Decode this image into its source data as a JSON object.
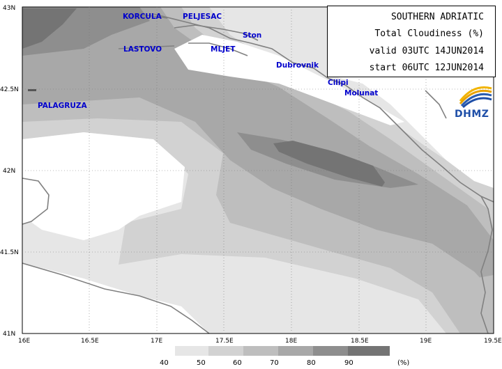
{
  "title": {
    "region": "SOUTHERN ADRIATIC",
    "variable": "Total Cloudiness (%)",
    "valid": "valid 03UTC 14JUN2014",
    "start": "start 06UTC 12JUN2014"
  },
  "logo": {
    "text": "DHMZ",
    "icon": "dhmz-logo-icon"
  },
  "axes": {
    "lat_ticks": [
      "43N",
      "42.5N",
      "42N",
      "41.5N",
      "41N"
    ],
    "lon_ticks": [
      "16E",
      "16.5E",
      "17E",
      "17.5E",
      "18E",
      "18.5E",
      "19E",
      "19.5E"
    ],
    "lat_range": [
      41,
      43
    ],
    "lon_range": [
      16,
      19.5
    ]
  },
  "places": {
    "korcula": "KORCULA",
    "peljesac": "PELJESAC",
    "ston": "Ston",
    "lastovo": "LASTOVO",
    "mljet": "MLJET",
    "dubrovnik": "Dubrovnik",
    "cilipi": "Cilipi",
    "molunat": "Molunat",
    "palagruza": "PALAGRUZA"
  },
  "legend": {
    "unit": "(%)",
    "levels": [
      "40",
      "50",
      "60",
      "70",
      "80",
      "90"
    ],
    "colors": [
      "#e6e6e6",
      "#d2d2d2",
      "#bebebe",
      "#a8a8a8",
      "#8e8e8e",
      "#747474"
    ]
  },
  "colors": {
    "place_label": "#0000cc",
    "coastline": "#808080"
  }
}
